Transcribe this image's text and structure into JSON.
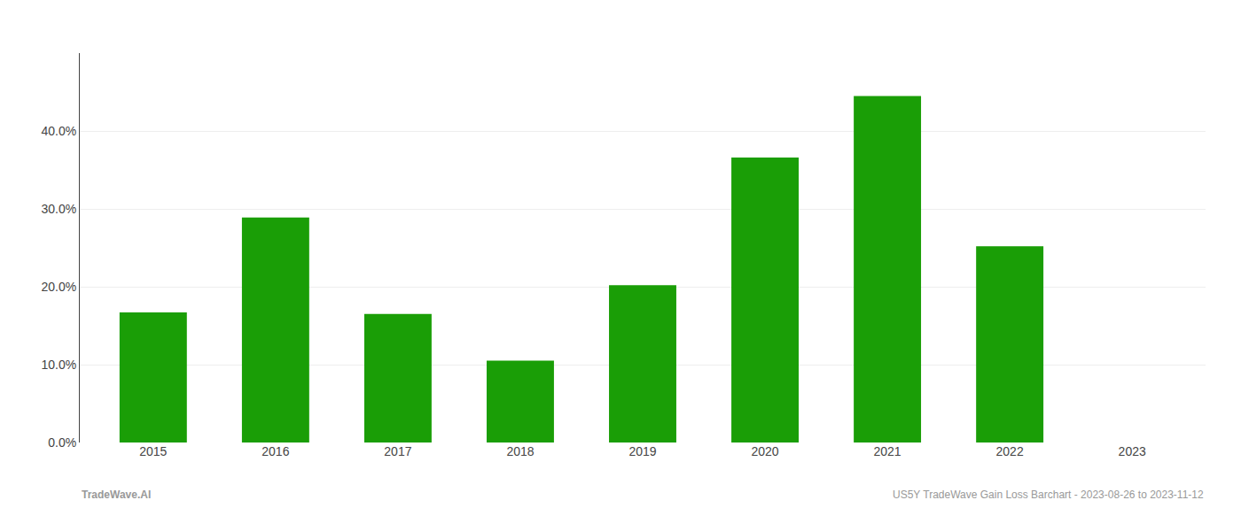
{
  "chart_data": {
    "type": "bar",
    "categories": [
      "2015",
      "2016",
      "2017",
      "2018",
      "2019",
      "2020",
      "2021",
      "2022",
      "2023"
    ],
    "values": [
      0.167,
      0.289,
      0.165,
      0.105,
      0.202,
      0.366,
      0.445,
      0.252,
      0.0
    ],
    "color": "#1a9e06",
    "ylim": [
      0.0,
      0.5
    ],
    "yticks": [
      {
        "value": 0.0,
        "label": "0.0%"
      },
      {
        "value": 0.1,
        "label": "10.0%"
      },
      {
        "value": 0.2,
        "label": "20.0%"
      },
      {
        "value": 0.3,
        "label": "30.0%"
      },
      {
        "value": 0.4,
        "label": "40.0%"
      }
    ],
    "grid": true,
    "annotations": [
      "TradeWave.AI",
      "US5Y TradeWave Gain Loss Barchart - 2023-08-26 to 2023-11-12"
    ]
  }
}
